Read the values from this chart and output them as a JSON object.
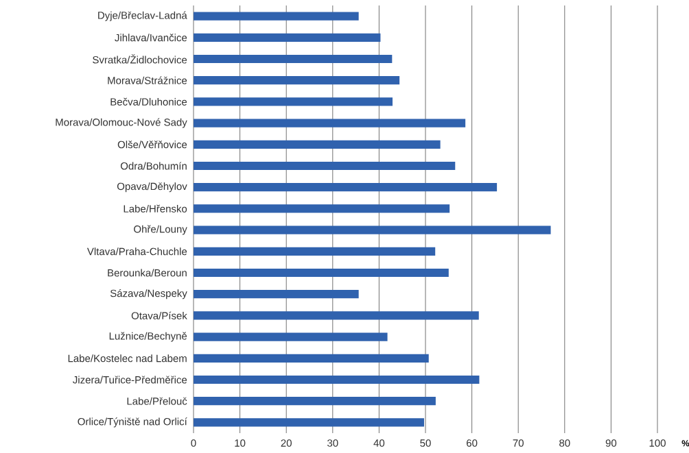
{
  "chart_data": {
    "type": "bar",
    "orientation": "horizontal",
    "xlabel": "%",
    "categories": [
      "Dyje/Břeclav-Ladná",
      "Jihlava/Ivančice",
      "Svratka/Židlochovice",
      "Morava/Strážnice",
      "Bečva/Dluhonice",
      "Morava/Olomouc-Nové Sady",
      "Olše/Věřňovice",
      "Odra/Bohumín",
      "Opava/Děhylov",
      "Labe/Hřensko",
      "Ohře/Louny",
      "Vltava/Praha-Chuchle",
      "Berounka/Beroun",
      "Sázava/Nespeky",
      "Otava/Písek",
      "Lužnice/Bechyně",
      "Labe/Kostelec nad Labem",
      "Jizera/Tuřice-Předměřice",
      "Labe/Přelouč",
      "Orlice/Týniště nad Orlicí"
    ],
    "values": [
      35.6,
      40.3,
      42.8,
      44.4,
      42.9,
      58.6,
      53.2,
      56.4,
      65.4,
      55.2,
      77.0,
      52.1,
      55.0,
      35.6,
      61.5,
      41.8,
      50.7,
      61.6,
      52.2,
      49.7
    ],
    "color": "#3062ae",
    "xlim": [
      0,
      100
    ],
    "xticks": [
      0,
      10,
      20,
      30,
      40,
      50,
      60,
      70,
      80,
      90,
      100
    ],
    "grid": "x"
  }
}
